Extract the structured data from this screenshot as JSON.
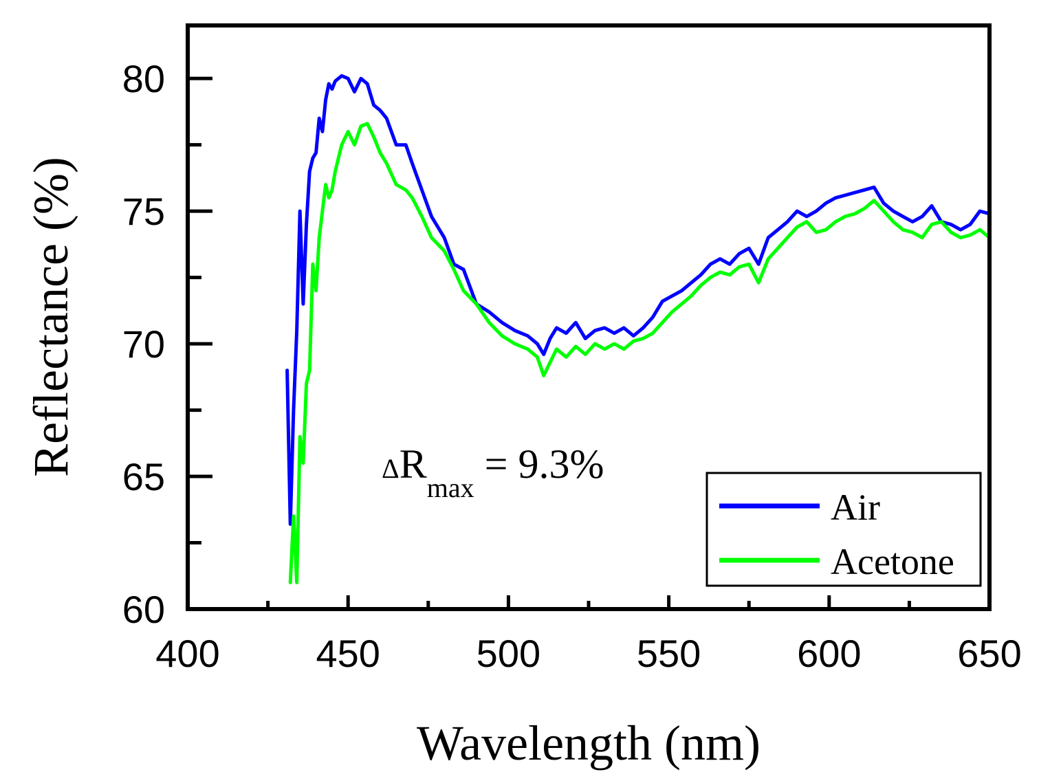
{
  "chart_data": {
    "type": "line",
    "xlabel": "Wavelength (nm)",
    "ylabel": "Reflectance (%)",
    "xlim": [
      400,
      650
    ],
    "ylim": [
      60,
      82
    ],
    "x_ticks": [
      400,
      450,
      500,
      550,
      600,
      650
    ],
    "y_ticks": [
      60,
      65,
      70,
      75,
      80
    ],
    "grid": false,
    "legend_position": "bottom-right",
    "annotation": {
      "delta": "Δ",
      "main": "R",
      "sub": "max",
      "suffix": " = 9.3%"
    },
    "series": [
      {
        "name": "Air",
        "color": "#0000ff",
        "x": [
          431,
          432,
          433,
          434,
          435,
          436,
          437,
          438,
          439,
          440,
          441,
          442,
          443,
          444,
          445,
          446,
          448,
          450,
          452,
          454,
          456,
          458,
          460,
          462,
          465,
          468,
          470,
          473,
          476,
          480,
          483,
          486,
          490,
          494,
          498,
          502,
          506,
          509,
          511,
          513,
          515,
          518,
          521,
          524,
          527,
          530,
          533,
          536,
          539,
          542,
          545,
          548,
          551,
          554,
          557,
          560,
          563,
          566,
          569,
          572,
          575,
          578,
          581,
          584,
          587,
          590,
          593,
          596,
          599,
          602,
          605,
          608,
          611,
          614,
          617,
          620,
          623,
          626,
          629,
          632,
          635,
          638,
          641,
          644,
          647,
          650
        ],
        "y": [
          69.0,
          63.2,
          67.5,
          70.5,
          75.0,
          71.5,
          74.5,
          76.5,
          77.0,
          77.2,
          78.5,
          78.0,
          79.2,
          79.8,
          79.6,
          79.9,
          80.1,
          80.0,
          79.5,
          80.0,
          79.8,
          79.0,
          78.8,
          78.5,
          77.5,
          77.5,
          76.8,
          75.8,
          74.8,
          74.0,
          73.0,
          72.8,
          71.5,
          71.2,
          70.8,
          70.5,
          70.3,
          70.0,
          69.6,
          70.2,
          70.6,
          70.4,
          70.8,
          70.2,
          70.5,
          70.6,
          70.4,
          70.6,
          70.3,
          70.6,
          71.0,
          71.6,
          71.8,
          72.0,
          72.3,
          72.6,
          73.0,
          73.2,
          73.0,
          73.4,
          73.6,
          73.0,
          74.0,
          74.3,
          74.6,
          75.0,
          74.8,
          75.0,
          75.3,
          75.5,
          75.6,
          75.7,
          75.8,
          75.9,
          75.3,
          75.0,
          74.8,
          74.6,
          74.8,
          75.2,
          74.6,
          74.5,
          74.3,
          74.5,
          75.0,
          74.9
        ]
      },
      {
        "name": "Acetone",
        "color": "#00ff00",
        "x": [
          432,
          433,
          434,
          435,
          436,
          437,
          438,
          439,
          440,
          441,
          442,
          443,
          444,
          445,
          446,
          448,
          450,
          452,
          454,
          456,
          458,
          460,
          462,
          465,
          468,
          470,
          473,
          476,
          480,
          483,
          486,
          490,
          494,
          498,
          502,
          506,
          509,
          511,
          513,
          515,
          518,
          521,
          524,
          527,
          530,
          533,
          536,
          539,
          542,
          545,
          548,
          551,
          554,
          557,
          560,
          563,
          566,
          569,
          572,
          575,
          578,
          581,
          584,
          587,
          590,
          593,
          596,
          599,
          602,
          605,
          608,
          611,
          614,
          617,
          620,
          623,
          626,
          629,
          632,
          635,
          638,
          641,
          644,
          647,
          650
        ],
        "y": [
          61.0,
          63.5,
          61.0,
          66.5,
          65.5,
          68.5,
          69.0,
          73.0,
          72.0,
          74.0,
          75.0,
          76.0,
          75.5,
          75.8,
          76.5,
          77.5,
          78.0,
          77.5,
          78.2,
          78.3,
          77.8,
          77.2,
          76.8,
          76.0,
          75.8,
          75.5,
          74.8,
          74.0,
          73.5,
          72.8,
          72.0,
          71.5,
          70.8,
          70.3,
          70.0,
          69.8,
          69.5,
          68.8,
          69.3,
          69.8,
          69.5,
          69.9,
          69.6,
          70.0,
          69.8,
          70.0,
          69.8,
          70.1,
          70.2,
          70.4,
          70.8,
          71.2,
          71.5,
          71.8,
          72.2,
          72.5,
          72.7,
          72.6,
          72.9,
          73.0,
          72.3,
          73.2,
          73.6,
          74.0,
          74.4,
          74.6,
          74.2,
          74.3,
          74.6,
          74.8,
          74.9,
          75.1,
          75.4,
          75.0,
          74.6,
          74.3,
          74.2,
          74.0,
          74.5,
          74.6,
          74.2,
          74.0,
          74.1,
          74.3,
          74.0
        ]
      }
    ]
  }
}
